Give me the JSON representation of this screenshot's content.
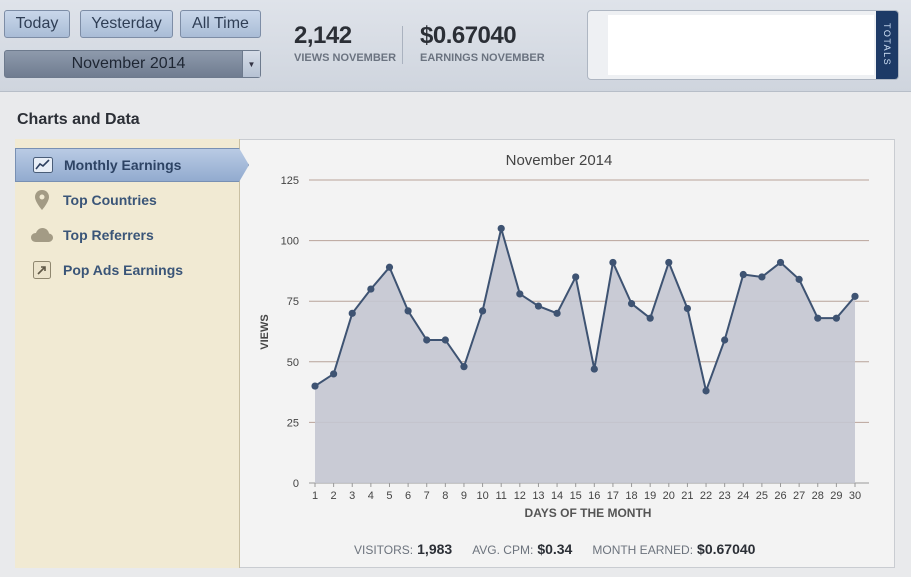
{
  "range_buttons": [
    "Today",
    "Yesterday",
    "All Time"
  ],
  "month_select": {
    "value": "November 2014",
    "arrow_icon": "chevron-down-icon"
  },
  "stats": {
    "views": {
      "value": "2,142",
      "label": "VIEWS NOVEMBER"
    },
    "earnings": {
      "value": "$0.67040",
      "label": "EARNINGS NOVEMBER"
    }
  },
  "totals_tab": "TOTALS",
  "section_title": "Charts and Data",
  "nav": {
    "items": [
      {
        "label": "Monthly Earnings",
        "icon": "line-chart-icon",
        "active": true
      },
      {
        "label": "Top Countries",
        "icon": "map-pin-icon",
        "active": false
      },
      {
        "label": "Top Referrers",
        "icon": "cloud-icon",
        "active": false
      },
      {
        "label": "Pop Ads Earnings",
        "icon": "popup-arrow-icon",
        "active": false
      }
    ]
  },
  "chart_data": {
    "type": "area",
    "title": "November 2014",
    "xlabel": "DAYS OF THE MONTH",
    "ylabel": "VIEWS",
    "ylim": [
      0,
      125
    ],
    "yticks": [
      0,
      25,
      50,
      75,
      100,
      125
    ],
    "x": [
      1,
      2,
      3,
      4,
      5,
      6,
      7,
      8,
      9,
      10,
      11,
      12,
      13,
      14,
      15,
      16,
      17,
      18,
      19,
      20,
      21,
      22,
      23,
      24,
      25,
      26,
      27,
      28,
      29,
      30
    ],
    "series": [
      {
        "values": [
          40,
          45,
          70,
          80,
          89,
          71,
          59,
          59,
          48,
          71,
          105,
          78,
          73,
          70,
          85,
          47,
          91,
          74,
          68,
          91,
          72,
          38,
          59,
          86,
          85,
          91,
          84,
          68,
          68,
          77
        ]
      }
    ],
    "grid": true,
    "colors": {
      "fill": "#c4c6d2",
      "line": "#3e5372",
      "grid": "#b8a39a"
    }
  },
  "footer": {
    "visitors_label": "VISITORS:",
    "visitors": "1,983",
    "cpm_label": "AVG. CPM:",
    "cpm": "$0.34",
    "earned_label": "MONTH EARNED:",
    "earned": "$0.67040"
  }
}
